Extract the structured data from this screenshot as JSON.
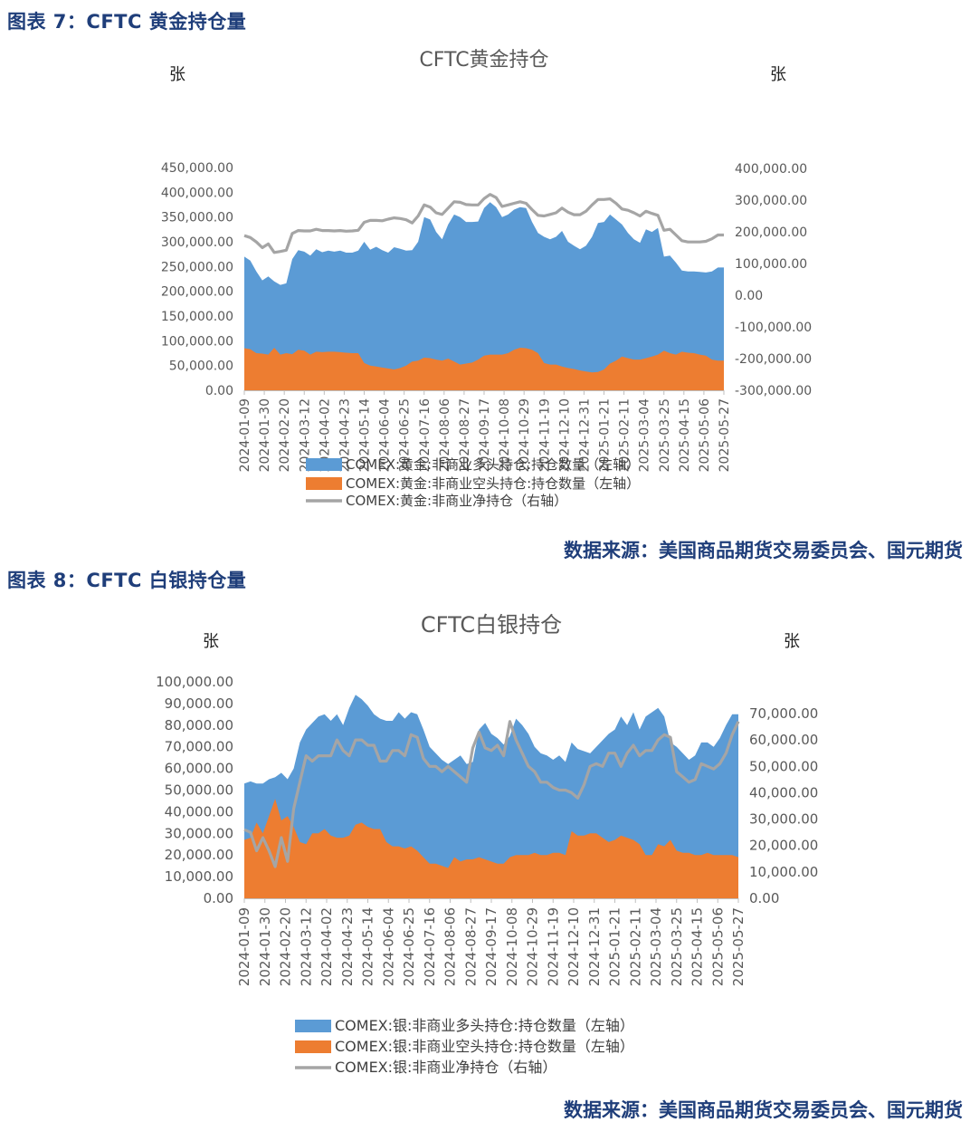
{
  "page": {
    "caption1": "图表 7：CFTC 黄金持仓量",
    "source1": "数据来源：美国商品期货交易委员会、国元期货",
    "caption2": "图表 8：CFTC 白银持仓量",
    "source2": "数据来源：美国商品期货交易委员会、国元期货"
  },
  "colors": {
    "long": "#5b9bd5",
    "short": "#ed7d31",
    "net": "#a5a5a5",
    "caption": "#1f3e7a"
  },
  "chart_data": [
    {
      "type": "area",
      "title": "CFTC黄金持仓",
      "ylabel_left": "张",
      "ylabel_right": "张",
      "ylim_left": [
        0,
        450000
      ],
      "yticks_left": [
        "450,000.00",
        "400,000.00",
        "350,000.00",
        "300,000.00",
        "250,000.00",
        "200,000.00",
        "150,000.00",
        "100,000.00",
        "50,000.00",
        "0.00"
      ],
      "ylim_right": [
        -300000,
        400000
      ],
      "yticks_right": [
        "400,000.00",
        "300,000.00",
        "200,000.00",
        "100,000.00",
        "0.00",
        "-100,000.00",
        "-200,000.00",
        "-300,000.00"
      ],
      "x_ticks": [
        "2024-01-09",
        "2024-01-30",
        "2024-02-20",
        "2024-03-12",
        "2024-04-02",
        "2024-04-23",
        "2024-05-14",
        "2024-06-04",
        "2024-06-25",
        "2024-07-16",
        "2024-08-06",
        "2024-08-27",
        "2024-09-17",
        "2024-10-08",
        "2024-10-29",
        "2024-11-19",
        "2024-12-10",
        "2024-12-31",
        "2025-01-21",
        "2025-02-11",
        "2025-03-04",
        "2025-03-25",
        "2025-04-15",
        "2025-05-06",
        "2025-05-27"
      ],
      "series": [
        {
          "name": "COMEX:黄金:非商业多头持仓:持仓数量（左轴）",
          "axis": "left",
          "kind": "area",
          "values": [
            270000,
            262000,
            240000,
            222000,
            230000,
            220000,
            213000,
            216000,
            265000,
            283000,
            280000,
            272000,
            285000,
            279000,
            282000,
            280000,
            282000,
            278000,
            278000,
            282000,
            300000,
            284000,
            290000,
            283000,
            278000,
            289000,
            286000,
            282000,
            283000,
            300000,
            350000,
            345000,
            320000,
            305000,
            335000,
            355000,
            350000,
            340000,
            340000,
            341000,
            368000,
            380000,
            370000,
            350000,
            355000,
            365000,
            370000,
            368000,
            340000,
            318000,
            310000,
            305000,
            310000,
            322000,
            300000,
            292000,
            285000,
            292000,
            310000,
            338000,
            340000,
            355000,
            345000,
            335000,
            318000,
            305000,
            298000,
            325000,
            320000,
            328000,
            270000,
            272000,
            258000,
            242000,
            240000,
            240000,
            239000,
            238000,
            240000,
            248000,
            248000
          ]
        },
        {
          "name": "COMEX:黄金:非商业空头持仓:持仓数量（左轴）",
          "axis": "left",
          "kind": "area",
          "values": [
            85000,
            83000,
            75000,
            74000,
            72000,
            86000,
            72000,
            75000,
            73000,
            82000,
            80000,
            72000,
            78000,
            77000,
            78000,
            78000,
            77000,
            76000,
            75000,
            75000,
            55000,
            50000,
            48000,
            46000,
            44000,
            42000,
            45000,
            50000,
            58000,
            60000,
            66000,
            65000,
            62000,
            60000,
            64000,
            58000,
            52000,
            54000,
            56000,
            62000,
            70000,
            72000,
            72000,
            72000,
            75000,
            82000,
            86000,
            85000,
            82000,
            75000,
            55000,
            52000,
            52000,
            48000,
            45000,
            43000,
            40000,
            38000,
            36000,
            37000,
            42000,
            54000,
            60000,
            68000,
            65000,
            62000,
            62000,
            65000,
            68000,
            72000,
            80000,
            75000,
            72000,
            78000,
            76000,
            75000,
            72000,
            70000,
            62000,
            60000,
            60000
          ]
        },
        {
          "name": "COMEX:黄金:非商业净持仓（右轴）",
          "axis": "right",
          "kind": "line",
          "values": [
            188000,
            182000,
            168000,
            150000,
            162000,
            135000,
            138000,
            142000,
            195000,
            204000,
            203000,
            203000,
            208000,
            204000,
            204000,
            203000,
            204000,
            202000,
            203000,
            205000,
            230000,
            236000,
            236000,
            235000,
            240000,
            244000,
            242000,
            238000,
            228000,
            250000,
            285000,
            278000,
            260000,
            255000,
            275000,
            295000,
            293000,
            286000,
            285000,
            285000,
            305000,
            318000,
            308000,
            280000,
            285000,
            290000,
            295000,
            290000,
            270000,
            252000,
            250000,
            255000,
            260000,
            275000,
            262000,
            254000,
            254000,
            265000,
            285000,
            302000,
            302000,
            304000,
            290000,
            272000,
            268000,
            260000,
            250000,
            265000,
            258000,
            252000,
            205000,
            208000,
            190000,
            172000,
            168000,
            168000,
            168000,
            170000,
            178000,
            190000,
            190000
          ]
        }
      ]
    },
    {
      "type": "area",
      "title": "CFTC白银持仓",
      "ylabel_left": "张",
      "ylabel_right": "张",
      "ylim_left": [
        0,
        100000
      ],
      "yticks_left": [
        "100,000.00",
        "90,000.00",
        "80,000.00",
        "70,000.00",
        "60,000.00",
        "50,000.00",
        "40,000.00",
        "30,000.00",
        "20,000.00",
        "10,000.00",
        "0.00"
      ],
      "ylim_right": [
        0,
        70000
      ],
      "yticks_right": [
        "70,000.00",
        "60,000.00",
        "50,000.00",
        "40,000.00",
        "30,000.00",
        "20,000.00",
        "10,000.00",
        "0.00"
      ],
      "x_ticks": [
        "2024-01-09",
        "2024-01-30",
        "2024-02-20",
        "2024-03-12",
        "2024-04-02",
        "2024-04-23",
        "2024-05-14",
        "2024-06-04",
        "2024-06-25",
        "2024-07-16",
        "2024-08-06",
        "2024-08-27",
        "2024-09-17",
        "2024-10-08",
        "2024-10-29",
        "2024-11-19",
        "2024-12-10",
        "2024-12-31",
        "2025-01-21",
        "2025-02-11",
        "2025-03-04",
        "2025-03-25",
        "2025-04-15",
        "2025-05-06",
        "2025-05-27"
      ],
      "series": [
        {
          "name": "COMEX:银:非商业多头持仓:持仓数量（左轴）",
          "axis": "left",
          "kind": "area",
          "values": [
            53000,
            54000,
            53000,
            53000,
            55000,
            56000,
            58000,
            55000,
            60000,
            72000,
            78000,
            81000,
            84000,
            85000,
            82000,
            85000,
            80000,
            88000,
            94000,
            92000,
            89000,
            85000,
            83000,
            82000,
            82000,
            86000,
            83000,
            86000,
            85000,
            78000,
            70000,
            67000,
            64000,
            62000,
            64000,
            66000,
            62000,
            63000,
            78000,
            81000,
            76000,
            74000,
            71000,
            75000,
            83000,
            80000,
            76000,
            70000,
            67000,
            66000,
            64000,
            66000,
            63000,
            72000,
            69000,
            68000,
            67000,
            70000,
            73000,
            76000,
            78000,
            84000,
            80000,
            86000,
            78000,
            84000,
            86000,
            88000,
            84000,
            72000,
            70000,
            67000,
            64000,
            66000,
            72000,
            72000,
            70000,
            74000,
            80000,
            85000,
            85000
          ]
        },
        {
          "name": "COMEX:银:非商业空头持仓:持仓数量（左轴）",
          "axis": "left",
          "kind": "area",
          "values": [
            27000,
            28000,
            35000,
            30000,
            38000,
            46000,
            36000,
            38000,
            33000,
            26000,
            25000,
            30000,
            30000,
            32000,
            29000,
            28000,
            28000,
            29000,
            34000,
            35000,
            33000,
            32000,
            32000,
            26000,
            24000,
            24000,
            23000,
            24000,
            22000,
            19000,
            16000,
            16000,
            15000,
            14000,
            19000,
            17000,
            18000,
            18000,
            19000,
            18000,
            17000,
            16000,
            16000,
            19000,
            20000,
            20000,
            20000,
            21000,
            20000,
            20000,
            21000,
            21000,
            20000,
            31000,
            29000,
            29000,
            30000,
            30000,
            28000,
            26000,
            27000,
            29000,
            28000,
            27000,
            25000,
            20000,
            20000,
            25000,
            24000,
            27000,
            22000,
            21000,
            21000,
            20000,
            20000,
            21000,
            20000,
            20000,
            20000,
            20000,
            19000
          ]
        },
        {
          "name": "COMEX:银:非商业净持仓（右轴）",
          "axis": "right",
          "kind": "line",
          "values": [
            26000,
            25000,
            18000,
            23000,
            18000,
            12000,
            23000,
            14000,
            34000,
            44000,
            54000,
            52000,
            54000,
            54000,
            54000,
            60000,
            56000,
            54000,
            60000,
            60000,
            58000,
            58000,
            52000,
            52000,
            56000,
            56000,
            54000,
            62000,
            61000,
            53000,
            50000,
            50000,
            48000,
            50000,
            48000,
            46000,
            44000,
            57000,
            63000,
            57000,
            56000,
            58000,
            54000,
            67000,
            60000,
            55000,
            50000,
            48000,
            44000,
            44000,
            42000,
            41000,
            41000,
            40000,
            38000,
            43000,
            50000,
            51000,
            50000,
            55000,
            55000,
            50000,
            55000,
            58000,
            54000,
            56000,
            56000,
            60000,
            62000,
            61000,
            48000,
            46000,
            44000,
            45000,
            51000,
            50000,
            49000,
            51000,
            55000,
            62000,
            67000
          ]
        }
      ]
    }
  ]
}
